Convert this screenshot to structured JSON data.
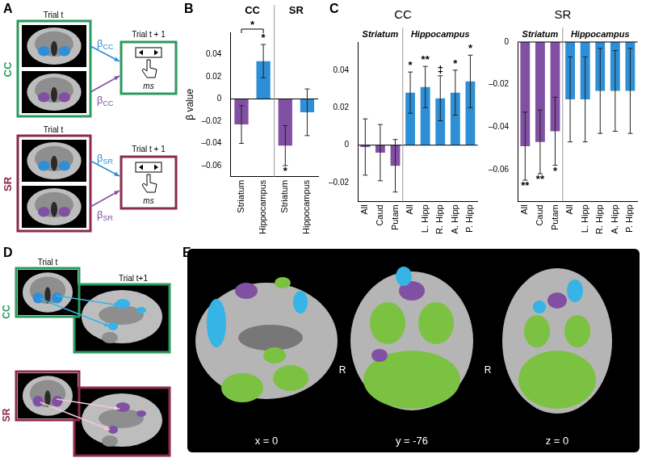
{
  "chart_data": [
    {
      "type": "bar",
      "categories": [
        "Striatum",
        "Hippocampus",
        "Striatum",
        "Hippocampus"
      ],
      "groups": [
        {
          "name": "CC",
          "span": [
            0,
            1
          ]
        },
        {
          "name": "SR",
          "span": [
            2,
            3
          ]
        }
      ],
      "values": [
        -0.023,
        0.034,
        -0.042,
        -0.012
      ],
      "errors": [
        0.017,
        0.015,
        0.018,
        0.021
      ],
      "significance": [
        null,
        "*",
        "*",
        null
      ],
      "comparisons": [
        {
          "between": [
            0,
            1
          ],
          "label": "*"
        }
      ],
      "colors": [
        "#8150a3",
        "#2e8fd6",
        "#8150a3",
        "#2e8fd6"
      ],
      "y_label": "β value",
      "ylim": [
        -0.07,
        0.06
      ],
      "yticks": [
        {
          "value": -0.06,
          "label": "–0.06"
        },
        {
          "value": -0.04,
          "label": "–0.04"
        },
        {
          "value": -0.02,
          "label": "–0.02"
        },
        0,
        0.02,
        0.04
      ],
      "grid": false
    },
    {
      "type": "bar",
      "title": "CC",
      "categories": [
        "All",
        "Caud",
        "Putam",
        "All",
        "L. Hipp",
        "R. Hipp",
        "A. Hipp",
        "P. Hipp"
      ],
      "groups": [
        {
          "name": "Striatum",
          "span": [
            0,
            2
          ]
        },
        {
          "name": "Hippocampus",
          "span": [
            3,
            7
          ]
        }
      ],
      "values": [
        -0.001,
        -0.004,
        -0.011,
        0.028,
        0.031,
        0.025,
        0.028,
        0.034
      ],
      "errors": [
        0.015,
        0.015,
        0.014,
        0.011,
        0.011,
        0.012,
        0.012,
        0.014
      ],
      "significance": [
        null,
        null,
        null,
        "*",
        "**",
        "‡",
        "*",
        "*"
      ],
      "colors": [
        "#8150a3",
        "#8150a3",
        "#8150a3",
        "#2e8fd6",
        "#2e8fd6",
        "#2e8fd6",
        "#2e8fd6",
        "#2e8fd6"
      ],
      "ylim": [
        -0.03,
        0.055
      ],
      "yticks": [
        {
          "value": -0.02,
          "label": "–0.02"
        },
        0,
        0.02,
        0.04
      ],
      "grid": false
    },
    {
      "type": "bar",
      "title": "SR",
      "categories": [
        "All",
        "Caud",
        "Putam",
        "All",
        "L. Hipp",
        "R. Hipp",
        "A. Hipp",
        "P. Hipp"
      ],
      "groups": [
        {
          "name": "Striatum",
          "span": [
            0,
            2
          ]
        },
        {
          "name": "Hippocampus",
          "span": [
            3,
            7
          ]
        }
      ],
      "values": [
        -0.049,
        -0.047,
        -0.042,
        -0.027,
        -0.027,
        -0.023,
        -0.023,
        -0.023
      ],
      "errors": [
        0.016,
        0.015,
        0.016,
        0.02,
        0.02,
        0.02,
        0.019,
        0.02
      ],
      "significance": [
        "**",
        "**",
        "*",
        null,
        null,
        null,
        null,
        null
      ],
      "colors": [
        "#8150a3",
        "#8150a3",
        "#8150a3",
        "#2e8fd6",
        "#2e8fd6",
        "#2e8fd6",
        "#2e8fd6",
        "#2e8fd6"
      ],
      "ylim": [
        -0.075,
        0
      ],
      "yticks": [
        {
          "value": -0.06,
          "label": "–0.06"
        },
        {
          "value": -0.04,
          "label": "–0.04"
        },
        {
          "value": -0.02,
          "label": "–0.02"
        },
        0
      ],
      "grid": false
    }
  ],
  "panel_letters": [
    "A",
    "B",
    "C",
    "D",
    "E"
  ],
  "panel_A": {
    "conditions": [
      {
        "name": "CC",
        "color": "#2b9a5d",
        "image_label": "Trial t",
        "next_label": "Trial t + 1",
        "screen_text": "ms",
        "betas": [
          {
            "symbol": "β",
            "subscript": "CC",
            "color": "#2e8fd6"
          },
          {
            "symbol": "β",
            "subscript": "CC",
            "color": "#8150a3"
          }
        ]
      },
      {
        "name": "SR",
        "color": "#8b2a4a",
        "image_label": "Trial t",
        "next_label": "Trial t + 1",
        "screen_text": "ms",
        "betas": [
          {
            "symbol": "β",
            "subscript": "SR",
            "color": "#2e8fd6"
          },
          {
            "symbol": "β",
            "subscript": "SR",
            "color": "#8150a3"
          }
        ]
      }
    ]
  },
  "panel_D": {
    "labels": [
      "Trial t",
      "Trial t+1"
    ],
    "conditions": [
      {
        "name": "CC",
        "color": "#2b9a5d",
        "blob": "#2e8fd6",
        "target": "#36b4e6"
      },
      {
        "name": "SR",
        "color": "#8b2a4a",
        "blob": "#8150a3",
        "target": "#8150a3"
      }
    ]
  },
  "panel_E": {
    "colors": [
      "#7cc242",
      "#8150a3",
      "#36b4e6"
    ],
    "views": [
      {
        "label": "x = 0"
      },
      {
        "label": "y = -76",
        "side": "R"
      },
      {
        "label": "z = 0",
        "side": "R"
      }
    ]
  }
}
